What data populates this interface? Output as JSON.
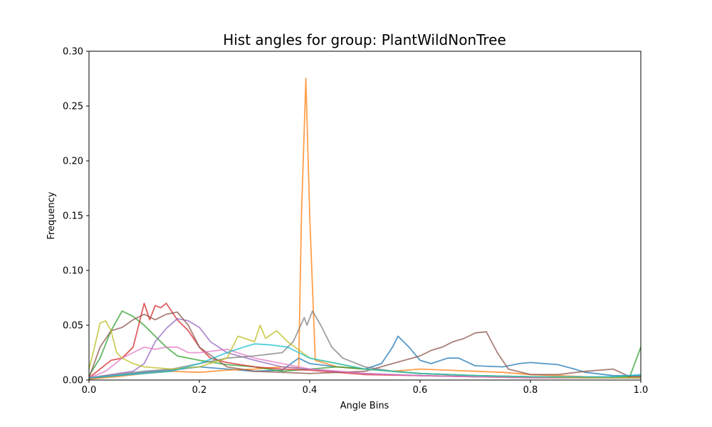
{
  "chart_data": {
    "type": "line",
    "title": "Hist angles for group: PlantWildNonTree",
    "xlabel": "Angle Bins",
    "ylabel": "Frequency",
    "xlim": [
      0,
      1
    ],
    "ylim": [
      0,
      0.3
    ],
    "xticks": [
      "0.0",
      "0.2",
      "0.4",
      "0.6",
      "0.8",
      "1.0"
    ],
    "yticks": [
      "0.00",
      "0.05",
      "0.10",
      "0.15",
      "0.20",
      "0.25",
      "0.30"
    ],
    "grid": false,
    "legend": "none",
    "series": [
      {
        "color": "#1f77b4",
        "points": [
          [
            0,
            0.001
          ],
          [
            0.05,
            0.004
          ],
          [
            0.1,
            0.007
          ],
          [
            0.15,
            0.009
          ],
          [
            0.2,
            0.012
          ],
          [
            0.25,
            0.01
          ],
          [
            0.3,
            0.008
          ],
          [
            0.35,
            0.009
          ],
          [
            0.38,
            0.02
          ],
          [
            0.4,
            0.015
          ],
          [
            0.45,
            0.012
          ],
          [
            0.5,
            0.01
          ],
          [
            0.53,
            0.015
          ],
          [
            0.55,
            0.03
          ],
          [
            0.56,
            0.04
          ],
          [
            0.58,
            0.03
          ],
          [
            0.6,
            0.018
          ],
          [
            0.62,
            0.015
          ],
          [
            0.65,
            0.02
          ],
          [
            0.67,
            0.02
          ],
          [
            0.7,
            0.013
          ],
          [
            0.75,
            0.012
          ],
          [
            0.78,
            0.015
          ],
          [
            0.8,
            0.016
          ],
          [
            0.85,
            0.014
          ],
          [
            0.88,
            0.01
          ],
          [
            0.9,
            0.007
          ],
          [
            0.95,
            0.004
          ],
          [
            1.0,
            0.004
          ]
        ]
      },
      {
        "color": "#ff7f0e",
        "points": [
          [
            0,
            0.001
          ],
          [
            0.05,
            0.003
          ],
          [
            0.1,
            0.006
          ],
          [
            0.15,
            0.008
          ],
          [
            0.2,
            0.007
          ],
          [
            0.25,
            0.009
          ],
          [
            0.3,
            0.01
          ],
          [
            0.35,
            0.012
          ],
          [
            0.38,
            0.011
          ],
          [
            0.385,
            0.15
          ],
          [
            0.393,
            0.275
          ],
          [
            0.4,
            0.15
          ],
          [
            0.41,
            0.018
          ],
          [
            0.45,
            0.012
          ],
          [
            0.5,
            0.01
          ],
          [
            0.55,
            0.008
          ],
          [
            0.6,
            0.01
          ],
          [
            0.65,
            0.009
          ],
          [
            0.7,
            0.008
          ],
          [
            0.75,
            0.007
          ],
          [
            0.8,
            0.005
          ],
          [
            0.85,
            0.004
          ],
          [
            0.9,
            0.003
          ],
          [
            0.95,
            0.002
          ],
          [
            1.0,
            0.003
          ]
        ]
      },
      {
        "color": "#2ca02c",
        "points": [
          [
            0,
            0.004
          ],
          [
            0.02,
            0.02
          ],
          [
            0.04,
            0.045
          ],
          [
            0.06,
            0.063
          ],
          [
            0.08,
            0.058
          ],
          [
            0.1,
            0.05
          ],
          [
            0.12,
            0.04
          ],
          [
            0.14,
            0.03
          ],
          [
            0.16,
            0.022
          ],
          [
            0.18,
            0.02
          ],
          [
            0.2,
            0.018
          ],
          [
            0.25,
            0.014
          ],
          [
            0.3,
            0.012
          ],
          [
            0.35,
            0.008
          ],
          [
            0.4,
            0.01
          ],
          [
            0.45,
            0.012
          ],
          [
            0.5,
            0.01
          ],
          [
            0.55,
            0.008
          ],
          [
            0.6,
            0.006
          ],
          [
            0.7,
            0.004
          ],
          [
            0.8,
            0.003
          ],
          [
            0.9,
            0.002
          ],
          [
            0.98,
            0.003
          ],
          [
            1.0,
            0.03
          ]
        ]
      },
      {
        "color": "#d62728",
        "points": [
          [
            0,
            0.002
          ],
          [
            0.02,
            0.01
          ],
          [
            0.04,
            0.018
          ],
          [
            0.06,
            0.02
          ],
          [
            0.08,
            0.03
          ],
          [
            0.1,
            0.07
          ],
          [
            0.11,
            0.055
          ],
          [
            0.12,
            0.068
          ],
          [
            0.13,
            0.066
          ],
          [
            0.14,
            0.07
          ],
          [
            0.16,
            0.055
          ],
          [
            0.18,
            0.045
          ],
          [
            0.2,
            0.03
          ],
          [
            0.22,
            0.02
          ],
          [
            0.25,
            0.016
          ],
          [
            0.3,
            0.012
          ],
          [
            0.35,
            0.01
          ],
          [
            0.4,
            0.009
          ],
          [
            0.45,
            0.007
          ],
          [
            0.5,
            0.005
          ],
          [
            0.6,
            0.004
          ],
          [
            0.7,
            0.003
          ],
          [
            0.8,
            0.002
          ],
          [
            0.9,
            0.002
          ],
          [
            1.0,
            0.002
          ]
        ]
      },
      {
        "color": "#9467bd",
        "points": [
          [
            0,
            0.002
          ],
          [
            0.04,
            0.005
          ],
          [
            0.08,
            0.008
          ],
          [
            0.1,
            0.015
          ],
          [
            0.12,
            0.035
          ],
          [
            0.14,
            0.047
          ],
          [
            0.16,
            0.056
          ],
          [
            0.18,
            0.054
          ],
          [
            0.2,
            0.048
          ],
          [
            0.22,
            0.035
          ],
          [
            0.25,
            0.025
          ],
          [
            0.3,
            0.018
          ],
          [
            0.35,
            0.012
          ],
          [
            0.4,
            0.01
          ],
          [
            0.45,
            0.008
          ],
          [
            0.5,
            0.006
          ],
          [
            0.6,
            0.004
          ],
          [
            0.7,
            0.003
          ],
          [
            0.8,
            0.003
          ],
          [
            0.9,
            0.002
          ],
          [
            1.0,
            0.002
          ]
        ]
      },
      {
        "color": "#8c564b",
        "points": [
          [
            0,
            0.002
          ],
          [
            0.02,
            0.03
          ],
          [
            0.04,
            0.045
          ],
          [
            0.06,
            0.048
          ],
          [
            0.08,
            0.055
          ],
          [
            0.1,
            0.06
          ],
          [
            0.12,
            0.055
          ],
          [
            0.14,
            0.06
          ],
          [
            0.16,
            0.062
          ],
          [
            0.18,
            0.05
          ],
          [
            0.2,
            0.03
          ],
          [
            0.25,
            0.012
          ],
          [
            0.3,
            0.008
          ],
          [
            0.4,
            0.006
          ],
          [
            0.5,
            0.008
          ],
          [
            0.55,
            0.015
          ],
          [
            0.6,
            0.022
          ],
          [
            0.62,
            0.027
          ],
          [
            0.64,
            0.03
          ],
          [
            0.66,
            0.035
          ],
          [
            0.68,
            0.038
          ],
          [
            0.7,
            0.043
          ],
          [
            0.72,
            0.044
          ],
          [
            0.74,
            0.025
          ],
          [
            0.76,
            0.01
          ],
          [
            0.8,
            0.005
          ],
          [
            0.85,
            0.005
          ],
          [
            0.9,
            0.008
          ],
          [
            0.95,
            0.01
          ],
          [
            0.98,
            0.003
          ],
          [
            1.0,
            0.003
          ]
        ]
      },
      {
        "color": "#e377c2",
        "points": [
          [
            0,
            0.002
          ],
          [
            0.03,
            0.008
          ],
          [
            0.06,
            0.02
          ],
          [
            0.08,
            0.025
          ],
          [
            0.1,
            0.03
          ],
          [
            0.12,
            0.028
          ],
          [
            0.14,
            0.03
          ],
          [
            0.16,
            0.03
          ],
          [
            0.18,
            0.025
          ],
          [
            0.2,
            0.025
          ],
          [
            0.25,
            0.028
          ],
          [
            0.3,
            0.02
          ],
          [
            0.35,
            0.015
          ],
          [
            0.4,
            0.01
          ],
          [
            0.45,
            0.008
          ],
          [
            0.5,
            0.006
          ],
          [
            0.6,
            0.004
          ],
          [
            0.7,
            0.003
          ],
          [
            0.8,
            0.002
          ],
          [
            0.9,
            0.002
          ],
          [
            1.0,
            0.002
          ]
        ]
      },
      {
        "color": "#7f7f7f",
        "points": [
          [
            0,
            0.002
          ],
          [
            0.05,
            0.005
          ],
          [
            0.1,
            0.008
          ],
          [
            0.15,
            0.01
          ],
          [
            0.2,
            0.015
          ],
          [
            0.25,
            0.02
          ],
          [
            0.3,
            0.022
          ],
          [
            0.35,
            0.025
          ],
          [
            0.37,
            0.035
          ],
          [
            0.39,
            0.057
          ],
          [
            0.395,
            0.05
          ],
          [
            0.405,
            0.063
          ],
          [
            0.42,
            0.05
          ],
          [
            0.44,
            0.03
          ],
          [
            0.46,
            0.02
          ],
          [
            0.5,
            0.012
          ],
          [
            0.55,
            0.008
          ],
          [
            0.6,
            0.006
          ],
          [
            0.7,
            0.004
          ],
          [
            0.8,
            0.003
          ],
          [
            0.9,
            0.002
          ],
          [
            1.0,
            0.002
          ]
        ]
      },
      {
        "color": "#bcbd22",
        "points": [
          [
            0,
            0.01
          ],
          [
            0.01,
            0.03
          ],
          [
            0.02,
            0.052
          ],
          [
            0.03,
            0.054
          ],
          [
            0.04,
            0.045
          ],
          [
            0.05,
            0.025
          ],
          [
            0.06,
            0.02
          ],
          [
            0.08,
            0.015
          ],
          [
            0.1,
            0.012
          ],
          [
            0.15,
            0.01
          ],
          [
            0.2,
            0.012
          ],
          [
            0.25,
            0.02
          ],
          [
            0.27,
            0.04
          ],
          [
            0.3,
            0.035
          ],
          [
            0.31,
            0.05
          ],
          [
            0.32,
            0.038
          ],
          [
            0.34,
            0.045
          ],
          [
            0.36,
            0.035
          ],
          [
            0.4,
            0.02
          ],
          [
            0.45,
            0.015
          ],
          [
            0.5,
            0.01
          ],
          [
            0.6,
            0.006
          ],
          [
            0.7,
            0.004
          ],
          [
            0.8,
            0.003
          ],
          [
            0.9,
            0.002
          ],
          [
            1.0,
            0.002
          ]
        ]
      },
      {
        "color": "#17becf",
        "points": [
          [
            0,
            0.002
          ],
          [
            0.05,
            0.004
          ],
          [
            0.1,
            0.006
          ],
          [
            0.15,
            0.008
          ],
          [
            0.2,
            0.015
          ],
          [
            0.25,
            0.025
          ],
          [
            0.28,
            0.03
          ],
          [
            0.3,
            0.033
          ],
          [
            0.33,
            0.032
          ],
          [
            0.36,
            0.03
          ],
          [
            0.38,
            0.025
          ],
          [
            0.4,
            0.02
          ],
          [
            0.45,
            0.015
          ],
          [
            0.5,
            0.01
          ],
          [
            0.55,
            0.008
          ],
          [
            0.6,
            0.006
          ],
          [
            0.7,
            0.004
          ],
          [
            0.8,
            0.003
          ],
          [
            0.9,
            0.003
          ],
          [
            0.95,
            0.003
          ],
          [
            1.0,
            0.005
          ]
        ]
      }
    ]
  }
}
